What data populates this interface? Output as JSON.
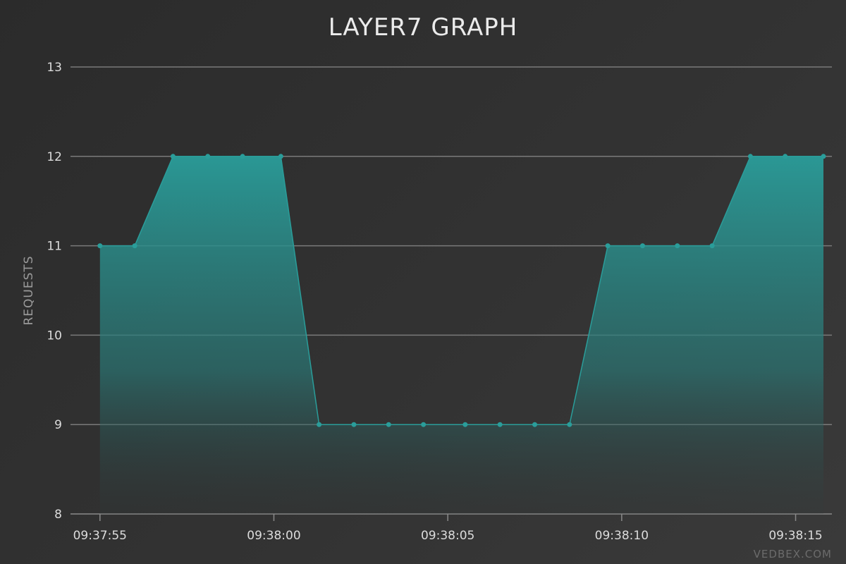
{
  "chart_data": {
    "type": "area",
    "title": "LAYER7 GRAPH",
    "xlabel": "",
    "ylabel": "REQUESTS",
    "ylim": [
      8,
      13
    ],
    "yticks": [
      8,
      9,
      10,
      11,
      12,
      13
    ],
    "xlim": [
      "09:37:54.7",
      "09:38:15.8"
    ],
    "xticks": [
      "09:37:55",
      "09:38:00",
      "09:38:05",
      "09:38:10",
      "09:38:15"
    ],
    "grid": true,
    "legend": "none",
    "series": [
      {
        "x": [
          "09:37:55.0",
          "09:37:56.0",
          "09:37:57.1",
          "09:37:58.1",
          "09:37:59.1",
          "09:38:00.2",
          "09:38:01.3",
          "09:38:02.3",
          "09:38:03.3",
          "09:38:04.3",
          "09:38:05.5",
          "09:38:06.5",
          "09:38:07.5",
          "09:38:08.5",
          "09:38:09.6",
          "09:38:10.6",
          "09:38:11.6",
          "09:38:12.6",
          "09:38:13.7",
          "09:38:14.7",
          "09:38:15.8"
        ],
        "values": [
          11,
          11,
          12,
          12,
          12,
          12,
          9,
          9,
          9,
          9,
          9,
          9,
          9,
          9,
          11,
          11,
          11,
          11,
          12,
          12,
          12
        ],
        "color": "#2a9d9a"
      }
    ]
  },
  "watermark": "VEDBEX.COM",
  "colors": {
    "line": "#2a9d9a",
    "fill_top": "#2a9d9a",
    "grid": "#7a7a7a"
  }
}
